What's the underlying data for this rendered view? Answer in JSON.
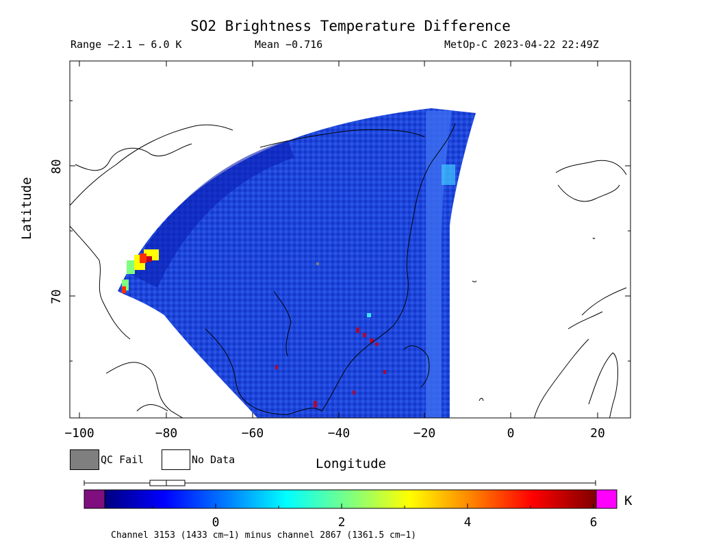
{
  "header": {
    "title": "SO2 Brightness Temperature Difference",
    "range": "Range −2.1 − 6.0 K",
    "mean": "Mean −0.716",
    "satellite_time": "MetOp-C 2023-04-22 22:49Z"
  },
  "axes": {
    "x_label": "Longitude",
    "y_label": "Latitude",
    "x_ticks": [
      "−100",
      "−80",
      "−60",
      "−40",
      "−20",
      "0",
      "20"
    ],
    "y_ticks": [
      "80",
      "70"
    ]
  },
  "legend": {
    "qc_fail_label": "QC Fail",
    "no_data_label": "No Data",
    "qc_fail_color": "#7f7f7f",
    "no_data_color": "#ffffff"
  },
  "colorbar": {
    "ticks": [
      "0",
      "2",
      "4",
      "6"
    ],
    "unit": "K",
    "low_color": "#7f0f7f",
    "high_color": "#ff00ff",
    "gradient": [
      "#00007f",
      "#0000ff",
      "#007fff",
      "#00ffff",
      "#7fff7f",
      "#ffff00",
      "#ff7f00",
      "#ff0000",
      "#7f0000"
    ],
    "footnote": "Channel 3153 (1433 cm−1) minus channel 2867 (1361.5 cm−1)"
  },
  "map": {
    "swath_color": "#1e46dc",
    "swath_dark": "#0a1eb4",
    "hotspot_colors": [
      "#ffff00",
      "#ff3000",
      "#c00020",
      "#7fff7f"
    ]
  }
}
